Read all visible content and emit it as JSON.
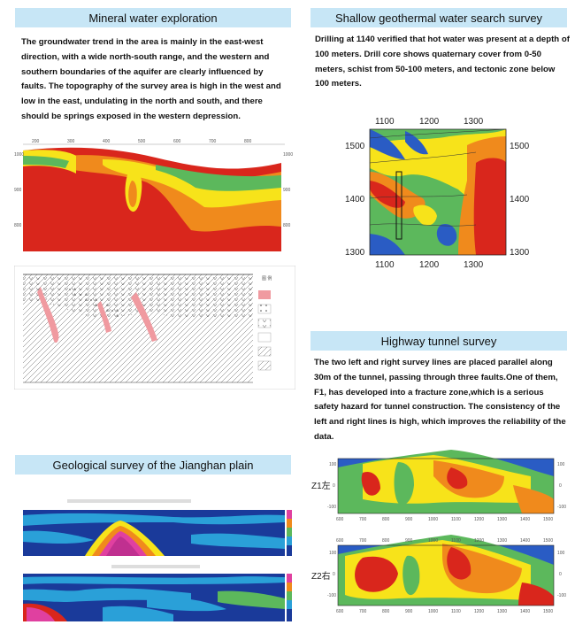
{
  "sections": {
    "mineral": {
      "title": "Mineral water exploration",
      "text": "The groundwater trend in the area is mainly in the east-west direction, with a wide north-south range, and the western and southern boundaries of the aquifer are clearly influenced by faults. The topography of the survey area is high in the west and low in the east, undulating in the north and south, and there should be springs exposed in the western depression."
    },
    "geothermal": {
      "title": "Shallow geothermal water search survey",
      "text": "Drilling at 1140 verified that hot water was present at a depth of 100 meters. Drill core shows quaternary cover from 0-50 meters, schist from 50-100 meters, and tectonic zone below 100 meters.",
      "x_ticks": [
        "1100",
        "1200",
        "1300"
      ],
      "y_ticks": [
        "1500",
        "1400",
        "1300"
      ]
    },
    "tunnel": {
      "title": "Highway tunnel survey",
      "text": "The two left and right survey lines are placed parallel along 30m of the tunnel, passing through three faults.One of them, F1, has developed into a fracture zone,which is a serious safety hazard for tunnel construction. The consistency of the left and right lines is high, which improves the reliability of the data.",
      "line1_label": "Z1左",
      "line2_label": "Z2右",
      "x_ticks": [
        "600",
        "700",
        "800",
        "900",
        "1000",
        "1100",
        "1200",
        "1300",
        "1400",
        "1500"
      ],
      "y_ticks": [
        "100",
        "0",
        "-100"
      ]
    },
    "jianghan": {
      "title": "Geological survey of the Jianghan plain"
    }
  },
  "colors": {
    "banner": "#c7e6f6",
    "deep_red": "#d9261c",
    "orange": "#f08a1c",
    "yellow": "#f7e31a",
    "green": "#5cb85c",
    "blue": "#2a5cc4",
    "magenta": "#e040a0"
  }
}
